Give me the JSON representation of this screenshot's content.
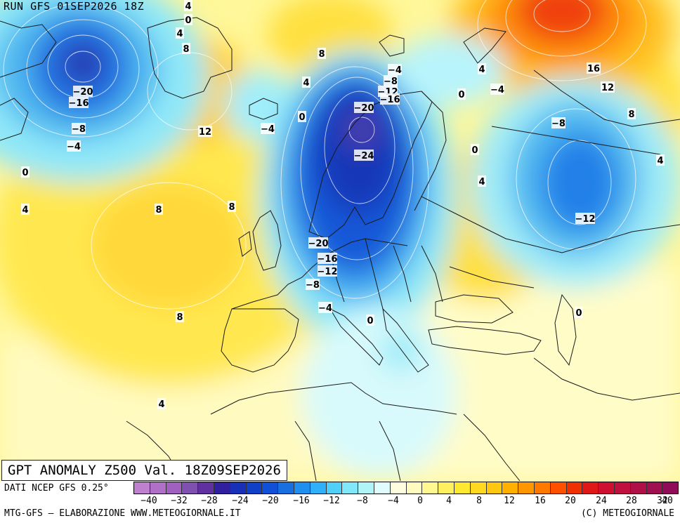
{
  "header": {
    "run": "RUN GFS 01SEP2026 18Z"
  },
  "title": "GPT ANOMALY Z500 Val. 18Z09SEP2026",
  "footer": {
    "source": "DATI NCEP GFS 0.25°",
    "credit_left": "MTG-GFS — ELABORAZIONE WWW.METEOGIORNALE.IT",
    "credit_right": "(C) METEOGIORNALE"
  },
  "colorbar": {
    "ticks": [
      "−40",
      "−32",
      "−28",
      "−24",
      "−20",
      "−16",
      "−12",
      "−8",
      "−4",
      "0",
      "4",
      "8",
      "12",
      "16",
      "20",
      "24",
      "28",
      "32",
      "40"
    ],
    "colors": [
      "#c080d0",
      "#b070c8",
      "#a060c0",
      "#8050b0",
      "#6030a0",
      "#3020a0",
      "#1830b8",
      "#1040c8",
      "#1050d8",
      "#1870e0",
      "#2090f0",
      "#30b0f8",
      "#50d0f8",
      "#80e8f8",
      "#b0f4f8",
      "#e0fcfc",
      "#ffffe0",
      "#fffcc0",
      "#fff890",
      "#fff060",
      "#ffe830",
      "#ffd820",
      "#ffc810",
      "#ffb000",
      "#ff9800",
      "#ff7800",
      "#ff5000",
      "#f03000",
      "#e01818",
      "#d01030",
      "#c01040",
      "#b01048",
      "#a01050",
      "#900c58"
    ]
  },
  "map": {
    "contour_labels": [
      {
        "text": "4"
      },
      {
        "text": "0"
      },
      {
        "text": "4"
      },
      {
        "text": "8"
      },
      {
        "text": "−20"
      },
      {
        "text": "−16"
      },
      {
        "text": "−8"
      },
      {
        "text": "−4"
      },
      {
        "text": "0"
      },
      {
        "text": "4"
      },
      {
        "text": "12"
      },
      {
        "text": "8"
      },
      {
        "text": "8"
      },
      {
        "text": "8"
      },
      {
        "text": "8"
      },
      {
        "text": "4"
      },
      {
        "text": "0"
      },
      {
        "text": "−4"
      },
      {
        "text": "−4"
      },
      {
        "text": "−8"
      },
      {
        "text": "−12"
      },
      {
        "text": "−16"
      },
      {
        "text": "−20"
      },
      {
        "text": "−24"
      },
      {
        "text": "0"
      },
      {
        "text": "4"
      },
      {
        "text": "−4"
      },
      {
        "text": "16"
      },
      {
        "text": "12"
      },
      {
        "text": "8"
      },
      {
        "text": "−8"
      },
      {
        "text": "4"
      },
      {
        "text": "0"
      },
      {
        "text": "4"
      },
      {
        "text": "−12"
      },
      {
        "text": "−20"
      },
      {
        "text": "−16"
      },
      {
        "text": "−12"
      },
      {
        "text": "−8"
      },
      {
        "text": "−4"
      },
      {
        "text": "0"
      },
      {
        "text": "0"
      },
      {
        "text": "4"
      }
    ]
  }
}
